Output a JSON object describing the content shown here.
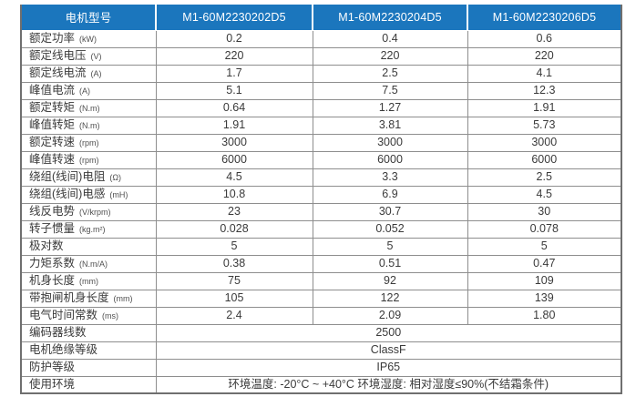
{
  "colors": {
    "header_bg": "#1b76bd",
    "header_text": "#ffffff",
    "border": "#8e8e8e",
    "body_text": "#3a3a3a"
  },
  "table": {
    "header": {
      "label": "电机型号",
      "models": [
        "M1-60M2230202D5",
        "M1-60M2230204D5",
        "M1-60M2230206D5"
      ]
    },
    "rows": [
      {
        "label": "额定功率",
        "unit": "(kW)",
        "values": [
          "0.2",
          "0.4",
          "0.6"
        ]
      },
      {
        "label": "额定线电压",
        "unit": "(V)",
        "values": [
          "220",
          "220",
          "220"
        ]
      },
      {
        "label": "额定线电流",
        "unit": "(A)",
        "values": [
          "1.7",
          "2.5",
          "4.1"
        ]
      },
      {
        "label": "峰值电流",
        "unit": "(A)",
        "values": [
          "5.1",
          "7.5",
          "12.3"
        ]
      },
      {
        "label": "额定转矩",
        "unit": "(N.m)",
        "values": [
          "0.64",
          "1.27",
          "1.91"
        ]
      },
      {
        "label": "峰值转矩",
        "unit": "(N.m)",
        "values": [
          "1.91",
          "3.81",
          "5.73"
        ]
      },
      {
        "label": "额定转速",
        "unit": "(rpm)",
        "values": [
          "3000",
          "3000",
          "3000"
        ]
      },
      {
        "label": "峰值转速",
        "unit": "(rpm)",
        "values": [
          "6000",
          "6000",
          "6000"
        ]
      },
      {
        "label": "绕组(线间)电阻",
        "unit": "(Ω)",
        "values": [
          "4.5",
          "3.3",
          "2.5"
        ]
      },
      {
        "label": "绕组(线间)电感",
        "unit": "(mH)",
        "values": [
          "10.8",
          "6.9",
          "4.5"
        ]
      },
      {
        "label": "线反电势",
        "unit": "(V/krpm)",
        "values": [
          "23",
          "30.7",
          "30"
        ]
      },
      {
        "label": "转子惯量",
        "unit": "(kg.m²)",
        "values": [
          "0.028",
          "0.052",
          "0.078"
        ]
      },
      {
        "label": "极对数",
        "unit": "",
        "values": [
          "5",
          "5",
          "5"
        ]
      },
      {
        "label": "力矩系数",
        "unit": "(N.m/A)",
        "values": [
          "0.38",
          "0.51",
          "0.47"
        ]
      },
      {
        "label": "机身长度",
        "unit": "(mm)",
        "values": [
          "75",
          "92",
          "109"
        ]
      },
      {
        "label": "带抱闸机身长度",
        "unit": "(mm)",
        "values": [
          "105",
          "122",
          "139"
        ]
      },
      {
        "label": "电气时间常数",
        "unit": "(ms)",
        "values": [
          "2.4",
          "2.09",
          "1.80"
        ]
      }
    ],
    "merged_rows": [
      {
        "label": "编码器线数",
        "value": "2500"
      },
      {
        "label": "电机绝缘等级",
        "value": "ClassF"
      },
      {
        "label": "防护等级",
        "value": "IP65"
      },
      {
        "label": "使用环境",
        "value": "环境温度: -20°C ~ +40°C  环境湿度: 相对湿度≤90%(不结霜条件)"
      }
    ]
  }
}
